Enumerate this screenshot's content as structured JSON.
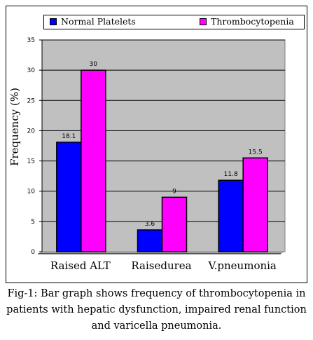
{
  "chart_data": {
    "type": "bar",
    "categories": [
      "Raised ALT",
      "Raisedurea",
      "V.pneumonia"
    ],
    "series": [
      {
        "name": "Normal Platelets",
        "values": [
          18.1,
          3.6,
          11.8
        ],
        "labels": [
          "18.1",
          "3.6",
          "11.8"
        ],
        "color": "#0000ff"
      },
      {
        "name": "Thrombocytopenia",
        "values": [
          30,
          9,
          15.5
        ],
        "labels": [
          "30",
          "9",
          "15.5"
        ],
        "color": "#ff00ff"
      }
    ],
    "ylabel": "Frequency (%)",
    "xlabel": "",
    "ylim": [
      0,
      35
    ],
    "yticks": [
      "0",
      "5",
      "10",
      "15",
      "20",
      "25",
      "30",
      "35"
    ],
    "grid": true,
    "plot_background": "#c0c0c0",
    "legend_position": "top"
  },
  "caption": "Fig-1: Bar graph shows frequency of thrombocytopenia in patients with hepatic dysfunction, impaired renal function and varicella pneumonia."
}
